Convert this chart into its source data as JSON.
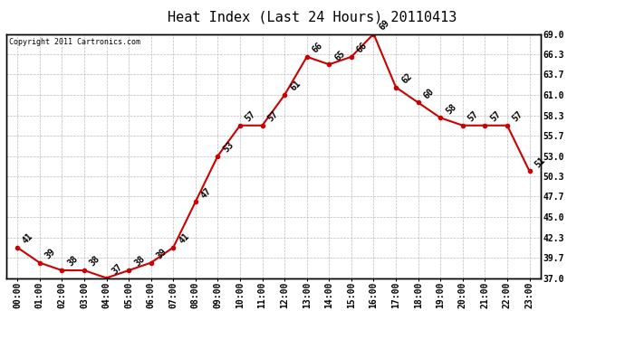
{
  "title": "Heat Index (Last 24 Hours) 20110413",
  "copyright_text": "Copyright 2011 Cartronics.com",
  "hours": [
    "00:00",
    "01:00",
    "02:00",
    "03:00",
    "04:00",
    "05:00",
    "06:00",
    "07:00",
    "08:00",
    "09:00",
    "10:00",
    "11:00",
    "12:00",
    "13:00",
    "14:00",
    "15:00",
    "16:00",
    "17:00",
    "18:00",
    "19:00",
    "20:00",
    "21:00",
    "22:00",
    "23:00"
  ],
  "values": [
    41,
    39,
    38,
    38,
    37,
    38,
    39,
    41,
    47,
    53,
    57,
    57,
    61,
    66,
    65,
    66,
    69,
    62,
    60,
    58,
    57,
    57,
    57,
    51
  ],
  "ylim_min": 37.0,
  "ylim_max": 69.0,
  "yticks": [
    37.0,
    39.7,
    42.3,
    45.0,
    47.7,
    50.3,
    53.0,
    55.7,
    58.3,
    61.0,
    63.7,
    66.3,
    69.0
  ],
  "ytick_labels": [
    "37.0",
    "39.7",
    "42.3",
    "45.0",
    "47.7",
    "50.3",
    "53.0",
    "55.7",
    "58.3",
    "61.0",
    "63.7",
    "66.3",
    "69.0"
  ],
  "line_color": "#cc0000",
  "marker_color": "#cc0000",
  "bg_color": "#ffffff",
  "plot_bg_color": "#ffffff",
  "grid_color": "#bbbbbb",
  "title_fontsize": 11,
  "label_fontsize": 7,
  "annotation_fontsize": 7
}
